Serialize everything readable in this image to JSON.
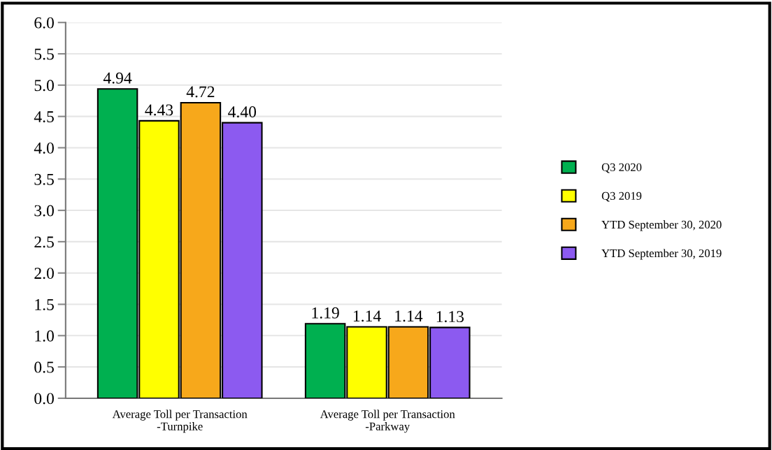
{
  "chart_data": {
    "type": "bar",
    "categories": [
      "Average Toll per Transaction\n-Turnpike",
      "Average Toll per Transaction\n-Parkway"
    ],
    "series": [
      {
        "name": "Q3 2020",
        "color": "#00b050",
        "values": [
          4.94,
          1.19
        ],
        "value_labels": [
          "4.94",
          "1.19"
        ]
      },
      {
        "name": "Q3 2019",
        "color": "#ffff00",
        "values": [
          4.43,
          1.14
        ],
        "value_labels": [
          "4.43",
          "1.14"
        ]
      },
      {
        "name": "YTD September 30, 2020",
        "color": "#f7a81b",
        "values": [
          4.72,
          1.14
        ],
        "value_labels": [
          "4.72",
          "1.14"
        ]
      },
      {
        "name": "YTD September 30, 2019",
        "color": "#8c5af0",
        "values": [
          4.4,
          1.13
        ],
        "value_labels": [
          "4.40",
          "1.13"
        ]
      }
    ],
    "ylim": [
      0,
      6
    ],
    "yticks": [
      {
        "value": 0,
        "label": "0.0"
      },
      {
        "value": 0.5,
        "label": "0.5"
      },
      {
        "value": 1,
        "label": "1.0"
      },
      {
        "value": 1.5,
        "label": "1.5"
      },
      {
        "value": 2,
        "label": "2.0"
      },
      {
        "value": 2.5,
        "label": "2.5"
      },
      {
        "value": 3,
        "label": "3.0"
      },
      {
        "value": 3.5,
        "label": "3.5"
      },
      {
        "value": 4,
        "label": "4.0"
      },
      {
        "value": 4.5,
        "label": "4.5"
      },
      {
        "value": 5,
        "label": "5.0"
      },
      {
        "value": 5.5,
        "label": "5.5"
      },
      {
        "value": 6,
        "label": "6.0"
      }
    ],
    "grid": "y",
    "legend": "right"
  }
}
